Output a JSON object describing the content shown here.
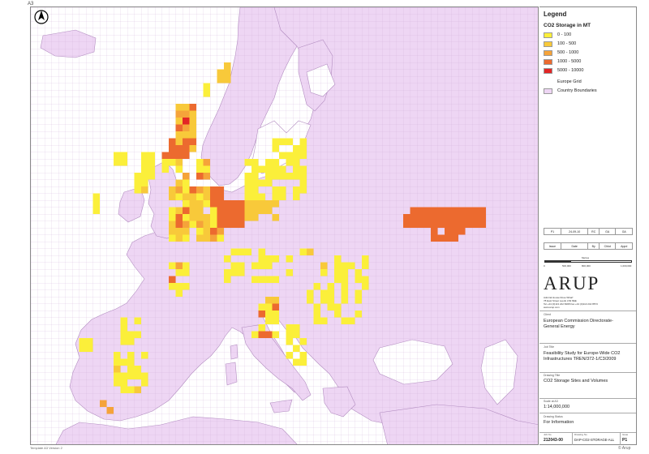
{
  "sheet": {
    "size": "A3",
    "footer_note": "Template A3 Version 2",
    "copyright": "© Arup"
  },
  "map": {
    "land_color": "#eed6f4",
    "sea_color": "#ffffff",
    "grid_color": "#c9a8d3",
    "border_color": "#b28cc0",
    "north_icon": "north-arrow-icon"
  },
  "legend": {
    "title": "Legend",
    "subtitle": "CO2 Storage in MT",
    "classes": [
      {
        "label": "0 - 100",
        "color": "#fbef3a"
      },
      {
        "label": "100 - 500",
        "color": "#f8c93a"
      },
      {
        "label": "500 - 1000",
        "color": "#f5a33a"
      },
      {
        "label": "1000 - 5000",
        "color": "#ec6a2f"
      },
      {
        "label": "5000 - 10000",
        "color": "#e32525"
      }
    ],
    "europe_grid": "Europe Grid",
    "country_boundaries": "Country Boundaries",
    "country_color": "#eed6f4"
  },
  "revisions": {
    "row": [
      "P1",
      "24-09-10",
      "RC",
      "GA",
      "GA"
    ],
    "header": [
      "Issue",
      "Date",
      "By",
      "Chkd",
      "Appd"
    ]
  },
  "scale_bar": {
    "title": "Metres",
    "ticks": [
      "0",
      "500,000",
      "800,000",
      "1,000,000"
    ]
  },
  "company": {
    "name": "ARUP",
    "address": [
      "Admiral House Rose Wharf",
      "78 East Street Leeds LS9 8EE",
      "Tel +44 (0)113 242 8498 Fax +44 (0)113 242 8573",
      "www.arup.com"
    ]
  },
  "title_block": {
    "client_label": "Client",
    "client": "European Commission Directorate-General Energy",
    "job_title_label": "Job Title",
    "job_title": "Feasibility Study for Europe-Wide CO2 Infrastructures TREN/372-1/C3/2009",
    "drawing_title_label": "Drawing Title",
    "drawing_title": "CO2 Storage Sites and Volumes",
    "scale_label": "Scale at A3",
    "scale": "1:14,000,000",
    "status_label": "Drawing Status",
    "status": "For Information",
    "job_no_label": "Job No",
    "job_no": "212043-00",
    "drawing_no_label": "Drawing No",
    "drawing_no": "DAP-CO2-STORAGE-ALL",
    "issue_label": "Issue",
    "issue": "P1"
  }
}
